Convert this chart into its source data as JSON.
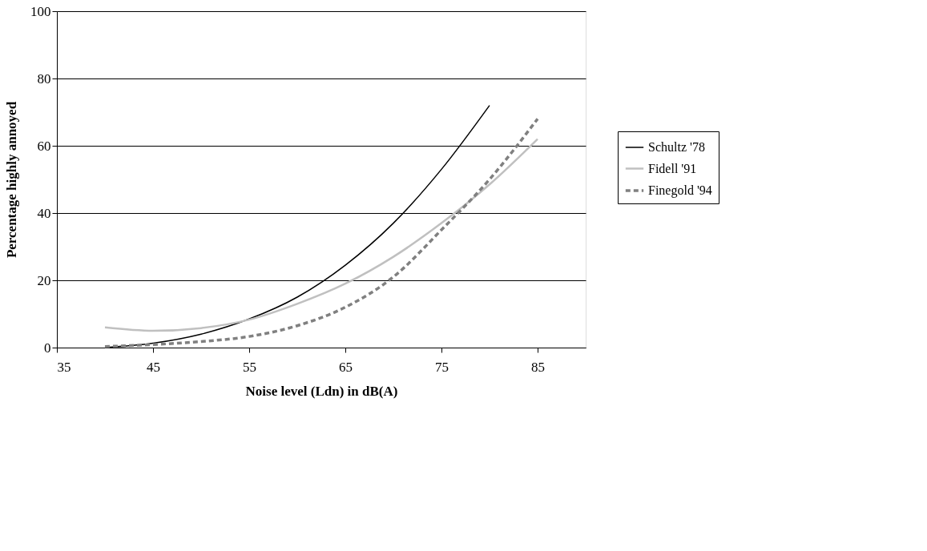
{
  "chart_data": {
    "type": "line",
    "xlabel": "Noise level (Ldn) in dB(A)",
    "ylabel": "Percentage highly annoyed",
    "xlim": [
      35,
      90
    ],
    "xticks": [
      35,
      45,
      55,
      65,
      75,
      85
    ],
    "ylim": [
      0,
      100
    ],
    "yticks": [
      0,
      20,
      40,
      60,
      80,
      100
    ],
    "grid": "y",
    "legend": "right",
    "marker": "none",
    "series": [
      {
        "name": "Schultz '78",
        "color": "#000000",
        "line_style": "solid",
        "x": [
          40,
          45,
          50,
          55,
          60,
          65,
          70,
          75,
          80
        ],
        "values": [
          0,
          1.3,
          4,
          8.5,
          15,
          24.5,
          37,
          53,
          72
        ]
      },
      {
        "name": "Fidell '91",
        "color": "#c0c0c0",
        "line_style": "solid",
        "x": [
          40,
          45,
          50,
          55,
          60,
          65,
          70,
          75,
          80,
          85
        ],
        "values": [
          6,
          5,
          5.8,
          8.3,
          13,
          19,
          27,
          37,
          48.5,
          62
        ]
      },
      {
        "name": "Finegold '94",
        "color": "#808080",
        "line_style": "dashed",
        "x": [
          40,
          45,
          50,
          55,
          60,
          65,
          70,
          75,
          80,
          85
        ],
        "values": [
          0.3,
          0.9,
          1.8,
          3.3,
          6.5,
          12,
          21,
          35,
          50,
          68
        ]
      }
    ]
  }
}
